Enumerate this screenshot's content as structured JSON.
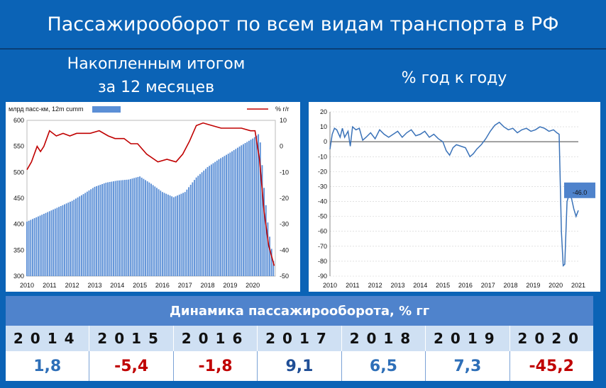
{
  "title": "Пассажирооборот по всем видам транспорта в РФ",
  "left_heading": [
    "Накопленным итогом",
    "за 12 месяцев"
  ],
  "right_heading": "% год к году",
  "chart_data": [
    {
      "type": "bar",
      "left_axis_label": "млрд пасс-км, 12m cumm",
      "right_axis_label": "% г/г",
      "ylim_left": [
        300,
        600
      ],
      "yticks_left": [
        "600",
        "550",
        "500",
        "450",
        "400",
        "350",
        "300"
      ],
      "ylim_right": [
        -50,
        10
      ],
      "yticks_right": [
        "10",
        "0",
        "-10",
        "-20",
        "-30",
        "-40",
        "-50"
      ],
      "xticks": [
        "2010",
        "2011",
        "2012",
        "2013",
        "2014",
        "2015",
        "2016",
        "2017",
        "2018",
        "2019",
        "2020"
      ],
      "bars_12m_cumm": {
        "x": [
          2010.0,
          2010.5,
          2011.0,
          2011.5,
          2012.0,
          2012.5,
          2013.0,
          2013.5,
          2014.0,
          2014.5,
          2015.0,
          2015.5,
          2016.0,
          2016.5,
          2017.0,
          2017.5,
          2018.0,
          2018.5,
          2019.0,
          2019.5,
          2020.0,
          2020.3,
          2020.5,
          2020.7,
          2020.95
        ],
        "values": [
          405,
          415,
          425,
          435,
          445,
          458,
          472,
          480,
          484,
          486,
          492,
          478,
          462,
          452,
          462,
          490,
          510,
          525,
          538,
          552,
          565,
          575,
          470,
          390,
          320
        ]
      },
      "line_yoy": {
        "x": [
          2010.0,
          2010.2,
          2010.45,
          2010.6,
          2010.75,
          2011.0,
          2011.3,
          2011.6,
          2011.9,
          2012.2,
          2012.5,
          2012.8,
          2013.2,
          2013.6,
          2013.9,
          2014.3,
          2014.6,
          2014.9,
          2015.3,
          2015.8,
          2016.2,
          2016.6,
          2016.9,
          2017.2,
          2017.5,
          2017.8,
          2018.2,
          2018.6,
          2019.0,
          2019.5,
          2019.9,
          2020.1,
          2020.3,
          2020.5,
          2020.7,
          2020.95
        ],
        "values": [
          -9,
          -6,
          0,
          -2,
          0,
          6,
          4,
          5,
          4,
          5,
          5,
          5,
          6,
          4,
          3,
          3,
          1,
          1,
          -3,
          -6,
          -5,
          -6,
          -3,
          2,
          8,
          9,
          8,
          7,
          7,
          7,
          6,
          6,
          -5,
          -25,
          -38,
          -46
        ]
      }
    },
    {
      "type": "line",
      "ylim": [
        -90,
        20
      ],
      "yticks": [
        "20",
        "10",
        "0",
        "-10",
        "-20",
        "-30",
        "-40",
        "-50",
        "-60",
        "-70",
        "-80",
        "-90"
      ],
      "xticks": [
        "2010",
        "2011",
        "2012",
        "2013",
        "2014",
        "2015",
        "2016",
        "2017",
        "2018",
        "2019",
        "2020",
        "2021"
      ],
      "annotation": "-46.0",
      "series": [
        {
          "x": [
            2010.0,
            2010.1,
            2010.2,
            2010.3,
            2010.45,
            2010.55,
            2010.65,
            2010.8,
            2010.9,
            2011.0,
            2011.15,
            2011.3,
            2011.45,
            2011.6,
            2011.8,
            2012.0,
            2012.2,
            2012.4,
            2012.6,
            2012.8,
            2013.0,
            2013.2,
            2013.4,
            2013.6,
            2013.8,
            2014.0,
            2014.2,
            2014.4,
            2014.6,
            2014.8,
            2015.0,
            2015.15,
            2015.3,
            2015.45,
            2015.6,
            2015.8,
            2016.0,
            2016.2,
            2016.35,
            2016.5,
            2016.7,
            2016.9,
            2017.1,
            2017.3,
            2017.5,
            2017.7,
            2017.9,
            2018.1,
            2018.3,
            2018.5,
            2018.7,
            2018.9,
            2019.1,
            2019.3,
            2019.5,
            2019.7,
            2019.9,
            2020.05,
            2020.15,
            2020.25,
            2020.33,
            2020.4,
            2020.5,
            2020.6,
            2020.7,
            2020.8,
            2020.9,
            2021.0
          ],
          "y": [
            -5,
            5,
            9,
            8,
            3,
            9,
            3,
            7,
            -3,
            10,
            8,
            9,
            1,
            3,
            6,
            2,
            8,
            5,
            3,
            5,
            7,
            3,
            6,
            8,
            4,
            5,
            7,
            3,
            5,
            2,
            0,
            -6,
            -9,
            -4,
            -2,
            -3,
            -4,
            -10,
            -8,
            -5,
            -2,
            2,
            7,
            11,
            13,
            10,
            8,
            9,
            6,
            8,
            9,
            7,
            8,
            10,
            9,
            7,
            8,
            6,
            5,
            -60,
            -83,
            -82,
            -40,
            -35,
            -38,
            -45,
            -50,
            -46
          ]
        }
      ]
    }
  ],
  "table": {
    "header": "Динамика пассажирооборота, % гг",
    "years": [
      "2014",
      "2015",
      "2016",
      "2017",
      "2018",
      "2019",
      "2020"
    ],
    "values": [
      "1,8",
      "-5,4",
      "-1,8",
      "9,1",
      "6,5",
      "7,3",
      "-45,2"
    ],
    "colors": [
      "#2e6fb8",
      "#c00000",
      "#c00000",
      "#1f4e96",
      "#2e6fb8",
      "#2e6fb8",
      "#c00000"
    ]
  }
}
